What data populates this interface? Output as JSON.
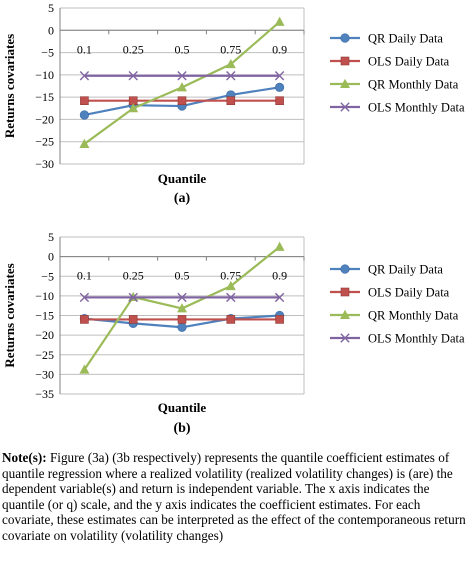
{
  "chart_data": [
    {
      "type": "line",
      "caption": "(a)",
      "xlabel": "Quantile",
      "ylabel": "Returns covariates",
      "ylim": [
        -30,
        5
      ],
      "yticks": [
        5,
        0,
        -5,
        -10,
        -15,
        -20,
        -25,
        -30
      ],
      "categories": [
        "0.1",
        "0.25",
        "0.5",
        "0.75",
        "0.9"
      ],
      "series": [
        {
          "name": "QR Daily Data",
          "values": [
            -19,
            -16.8,
            -17,
            -14.5,
            -12.8
          ],
          "color": "#4F81BD",
          "marker": "circle"
        },
        {
          "name": "OLS Daily Data",
          "values": [
            -15.8,
            -15.8,
            -15.8,
            -15.8,
            -15.8
          ],
          "color": "#C0504D",
          "marker": "square"
        },
        {
          "name": "QR Monthly Data",
          "values": [
            -25.5,
            -17.5,
            -12.8,
            -7.6,
            1.9
          ],
          "color": "#9BBB59",
          "marker": "triangle"
        },
        {
          "name": "OLS Monthly Data",
          "values": [
            -10.2,
            -10.2,
            -10.2,
            -10.2,
            -10.2
          ],
          "color": "#8064A2",
          "marker": "x"
        }
      ]
    },
    {
      "type": "line",
      "caption": "(b)",
      "xlabel": "Quantile",
      "ylabel": "Returns covariates",
      "ylim": [
        -35,
        5
      ],
      "yticks": [
        5,
        0,
        -5,
        -10,
        -15,
        -20,
        -25,
        -30,
        -35
      ],
      "categories": [
        "0.1",
        "0.25",
        "0.5",
        "0.75",
        "0.9"
      ],
      "series": [
        {
          "name": "QR Daily Data",
          "values": [
            -15.8,
            -17,
            -18,
            -15.8,
            -15
          ],
          "color": "#4F81BD",
          "marker": "circle"
        },
        {
          "name": "OLS Daily Data",
          "values": [
            -16,
            -16,
            -16,
            -16,
            -16
          ],
          "color": "#C0504D",
          "marker": "square"
        },
        {
          "name": "QR Monthly Data",
          "values": [
            -28.8,
            -10.3,
            -13.2,
            -7.5,
            2.5
          ],
          "color": "#9BBB59",
          "marker": "triangle"
        },
        {
          "name": "OLS Monthly Data",
          "values": [
            -10.4,
            -10.4,
            -10.4,
            -10.4,
            -10.4
          ],
          "color": "#8064A2",
          "marker": "x"
        }
      ]
    }
  ],
  "note": {
    "label": "Note(s):",
    "text": " Figure (3a) (3b respectively) represents the quantile coefficient estimates of quantile regression where a realized volatility (realized volatility changes) is (are) the dependent variable(s) and return is independent variable. The x axis indicates the quantile (or q) scale, and the y axis indicates the coefficient estimates. For each covariate, these estimates can be interpreted as the effect of the contemporaneous return covariate on volatility (volatility changes)"
  }
}
